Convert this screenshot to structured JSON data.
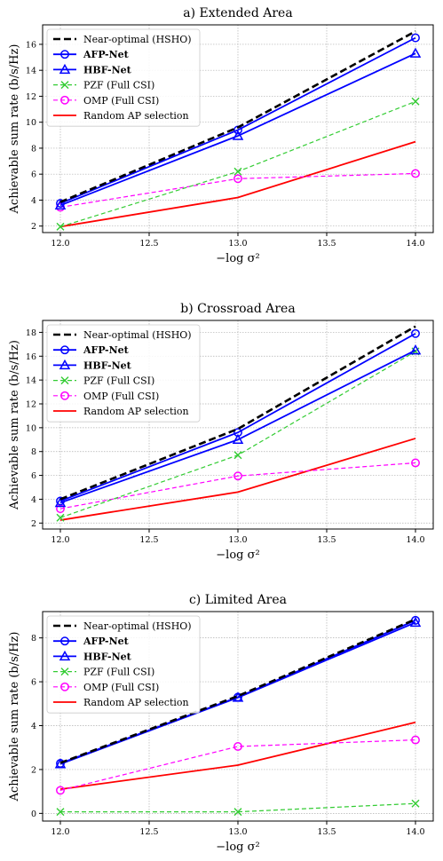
{
  "xlabel_display": "−log σ²",
  "chart_data": [
    {
      "type": "line",
      "title": "a) Extended Area",
      "xlabel": "−log σ²",
      "ylabel": "Achievable sum rate (b/s/Hz)",
      "x": [
        12.0,
        13.0,
        14.0
      ],
      "xticks": [
        "12.0",
        "12.5",
        "13.0",
        "13.5",
        "14.0"
      ],
      "xtick_values": [
        12.0,
        12.5,
        13.0,
        13.5,
        14.0
      ],
      "xlim": [
        11.9,
        14.1
      ],
      "ylim": [
        1.5,
        17.5
      ],
      "yticks": [
        2,
        4,
        6,
        8,
        10,
        12,
        14,
        16
      ],
      "grid": true,
      "legend_position": "top-left",
      "series": [
        {
          "name": "Near-optimal (HSHO)",
          "values": [
            3.85,
            9.6,
            17.0
          ],
          "color": "#000000",
          "style": "dashed-thick",
          "marker": "none",
          "bold": false
        },
        {
          "name": "AFP-Net",
          "values": [
            3.75,
            9.4,
            16.5
          ],
          "color": "#0000ff",
          "style": "solid",
          "marker": "circle",
          "bold": true
        },
        {
          "name": "HBF-Net",
          "values": [
            3.6,
            8.95,
            15.3
          ],
          "color": "#0000ff",
          "style": "solid",
          "marker": "triangle",
          "bold": true
        },
        {
          "name": "PZF (Full CSI)",
          "values": [
            1.95,
            6.2,
            11.6
          ],
          "color": "#33cc33",
          "style": "dashed",
          "marker": "x",
          "bold": false
        },
        {
          "name": "OMP (Full CSI)",
          "values": [
            3.45,
            5.65,
            6.05
          ],
          "color": "#ff00ff",
          "style": "dashed",
          "marker": "circle",
          "bold": false
        },
        {
          "name": "Random AP selection",
          "values": [
            1.95,
            4.2,
            8.5
          ],
          "color": "#ff0000",
          "style": "solid",
          "marker": "none",
          "bold": false
        }
      ]
    },
    {
      "type": "line",
      "title": "b) Crossroad Area",
      "xlabel": "−log σ²",
      "ylabel": "Achievable sum rate (b/s/Hz)",
      "x": [
        12.0,
        13.0,
        14.0
      ],
      "xticks": [
        "12.0",
        "12.5",
        "13.0",
        "13.5",
        "14.0"
      ],
      "xtick_values": [
        12.0,
        12.5,
        13.0,
        13.5,
        14.0
      ],
      "xlim": [
        11.9,
        14.1
      ],
      "ylim": [
        1.5,
        19.0
      ],
      "yticks": [
        2,
        4,
        6,
        8,
        10,
        12,
        14,
        16,
        18
      ],
      "grid": true,
      "legend_position": "top-left",
      "series": [
        {
          "name": "Near-optimal (HSHO)",
          "values": [
            4.0,
            9.9,
            18.5
          ],
          "color": "#000000",
          "style": "dashed-thick",
          "marker": "none",
          "bold": false
        },
        {
          "name": "AFP-Net",
          "values": [
            3.85,
            9.6,
            17.9
          ],
          "color": "#0000ff",
          "style": "solid",
          "marker": "circle",
          "bold": true
        },
        {
          "name": "HBF-Net",
          "values": [
            3.7,
            9.0,
            16.5
          ],
          "color": "#0000ff",
          "style": "solid",
          "marker": "triangle",
          "bold": true
        },
        {
          "name": "PZF (Full CSI)",
          "values": [
            2.45,
            7.7,
            16.4
          ],
          "color": "#33cc33",
          "style": "dashed",
          "marker": "x",
          "bold": false
        },
        {
          "name": "OMP (Full CSI)",
          "values": [
            3.2,
            5.95,
            7.05
          ],
          "color": "#ff00ff",
          "style": "dashed",
          "marker": "circle",
          "bold": false
        },
        {
          "name": "Random AP selection",
          "values": [
            2.25,
            4.6,
            9.1
          ],
          "color": "#ff0000",
          "style": "solid",
          "marker": "none",
          "bold": false
        }
      ]
    },
    {
      "type": "line",
      "title": "c) Limited Area",
      "xlabel": "−log σ²",
      "ylabel": "Achievable sum rate (b/s/Hz)",
      "x": [
        12.0,
        13.0,
        14.0
      ],
      "xticks": [
        "12.0",
        "12.5",
        "13.0",
        "13.5",
        "14.0"
      ],
      "xtick_values": [
        12.0,
        12.5,
        13.0,
        13.5,
        14.0
      ],
      "xlim": [
        11.9,
        14.1
      ],
      "ylim": [
        -0.35,
        9.2
      ],
      "yticks": [
        0,
        2,
        4,
        6,
        8
      ],
      "grid": true,
      "legend_position": "top-left",
      "series": [
        {
          "name": "Near-optimal (HSHO)",
          "values": [
            2.3,
            5.35,
            8.85
          ],
          "color": "#000000",
          "style": "dashed-thick",
          "marker": "none",
          "bold": false
        },
        {
          "name": "AFP-Net",
          "values": [
            2.28,
            5.3,
            8.8
          ],
          "color": "#0000ff",
          "style": "solid",
          "marker": "circle",
          "bold": true
        },
        {
          "name": "HBF-Net",
          "values": [
            2.25,
            5.28,
            8.7
          ],
          "color": "#0000ff",
          "style": "solid",
          "marker": "triangle",
          "bold": true
        },
        {
          "name": "PZF (Full CSI)",
          "values": [
            0.07,
            0.07,
            0.45
          ],
          "color": "#33cc33",
          "style": "dashed",
          "marker": "x",
          "bold": false
        },
        {
          "name": "OMP (Full CSI)",
          "values": [
            1.05,
            3.05,
            3.35
          ],
          "color": "#ff00ff",
          "style": "dashed",
          "marker": "circle",
          "bold": false
        },
        {
          "name": "Random AP selection",
          "values": [
            1.1,
            2.2,
            4.15
          ],
          "color": "#ff0000",
          "style": "solid",
          "marker": "none",
          "bold": false
        }
      ]
    }
  ]
}
